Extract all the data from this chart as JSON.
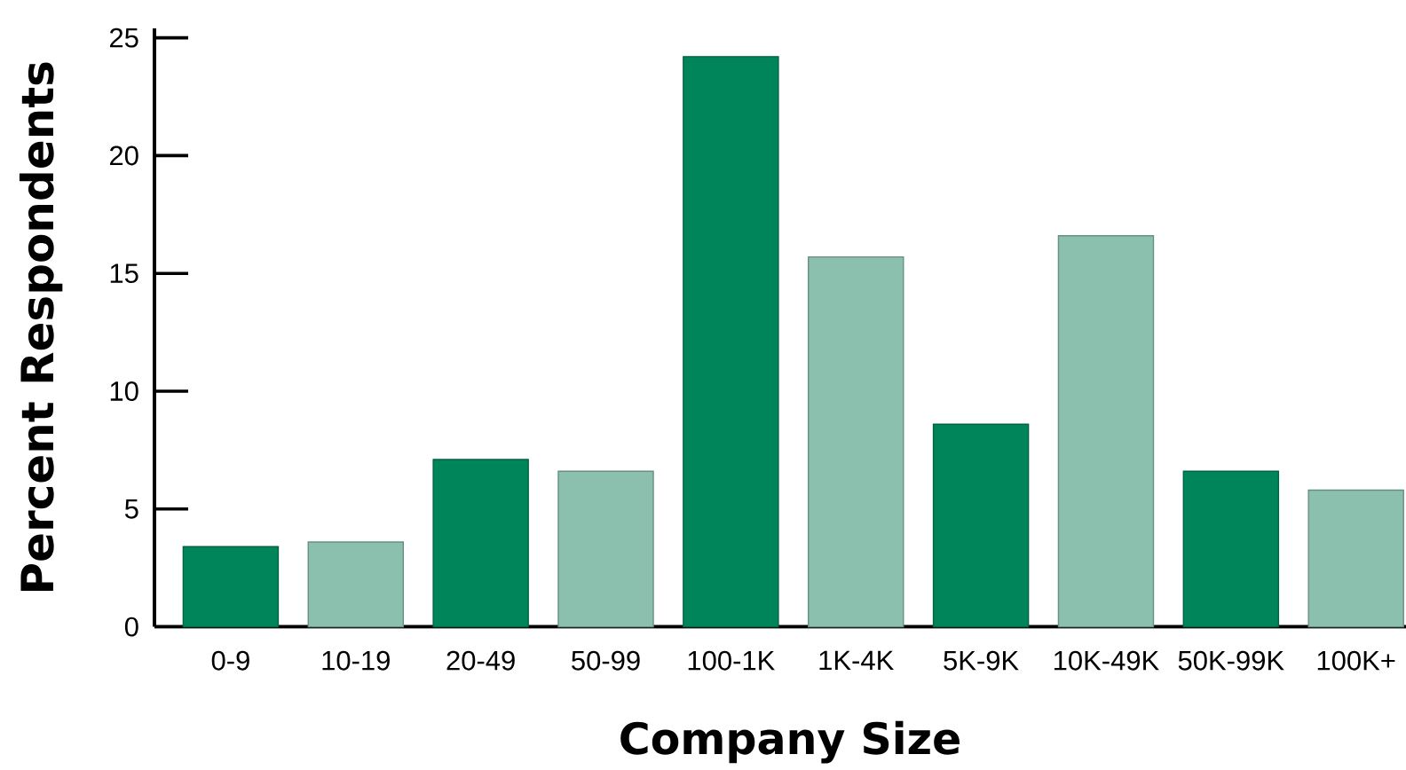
{
  "chart_data": {
    "type": "bar",
    "xlabel": "Company Size",
    "ylabel": "Percent Respondents",
    "categories": [
      "0-9",
      "10-19",
      "20-49",
      "50-99",
      "100-1K",
      "1K-4K",
      "5K-9K",
      "10K-49K",
      "50K-99K",
      "100K+"
    ],
    "values": [
      3.4,
      3.6,
      7.1,
      6.6,
      24.2,
      15.7,
      8.6,
      16.6,
      6.6,
      5.8
    ],
    "colors": [
      "#00845a",
      "#8bc0ae",
      "#00845a",
      "#8bc0ae",
      "#00845a",
      "#8bc0ae",
      "#00845a",
      "#8bc0ae",
      "#00845a",
      "#8bc0ae"
    ],
    "ylim": [
      0,
      25.4
    ],
    "yticks": [
      0,
      5,
      10,
      15,
      20,
      25
    ]
  }
}
